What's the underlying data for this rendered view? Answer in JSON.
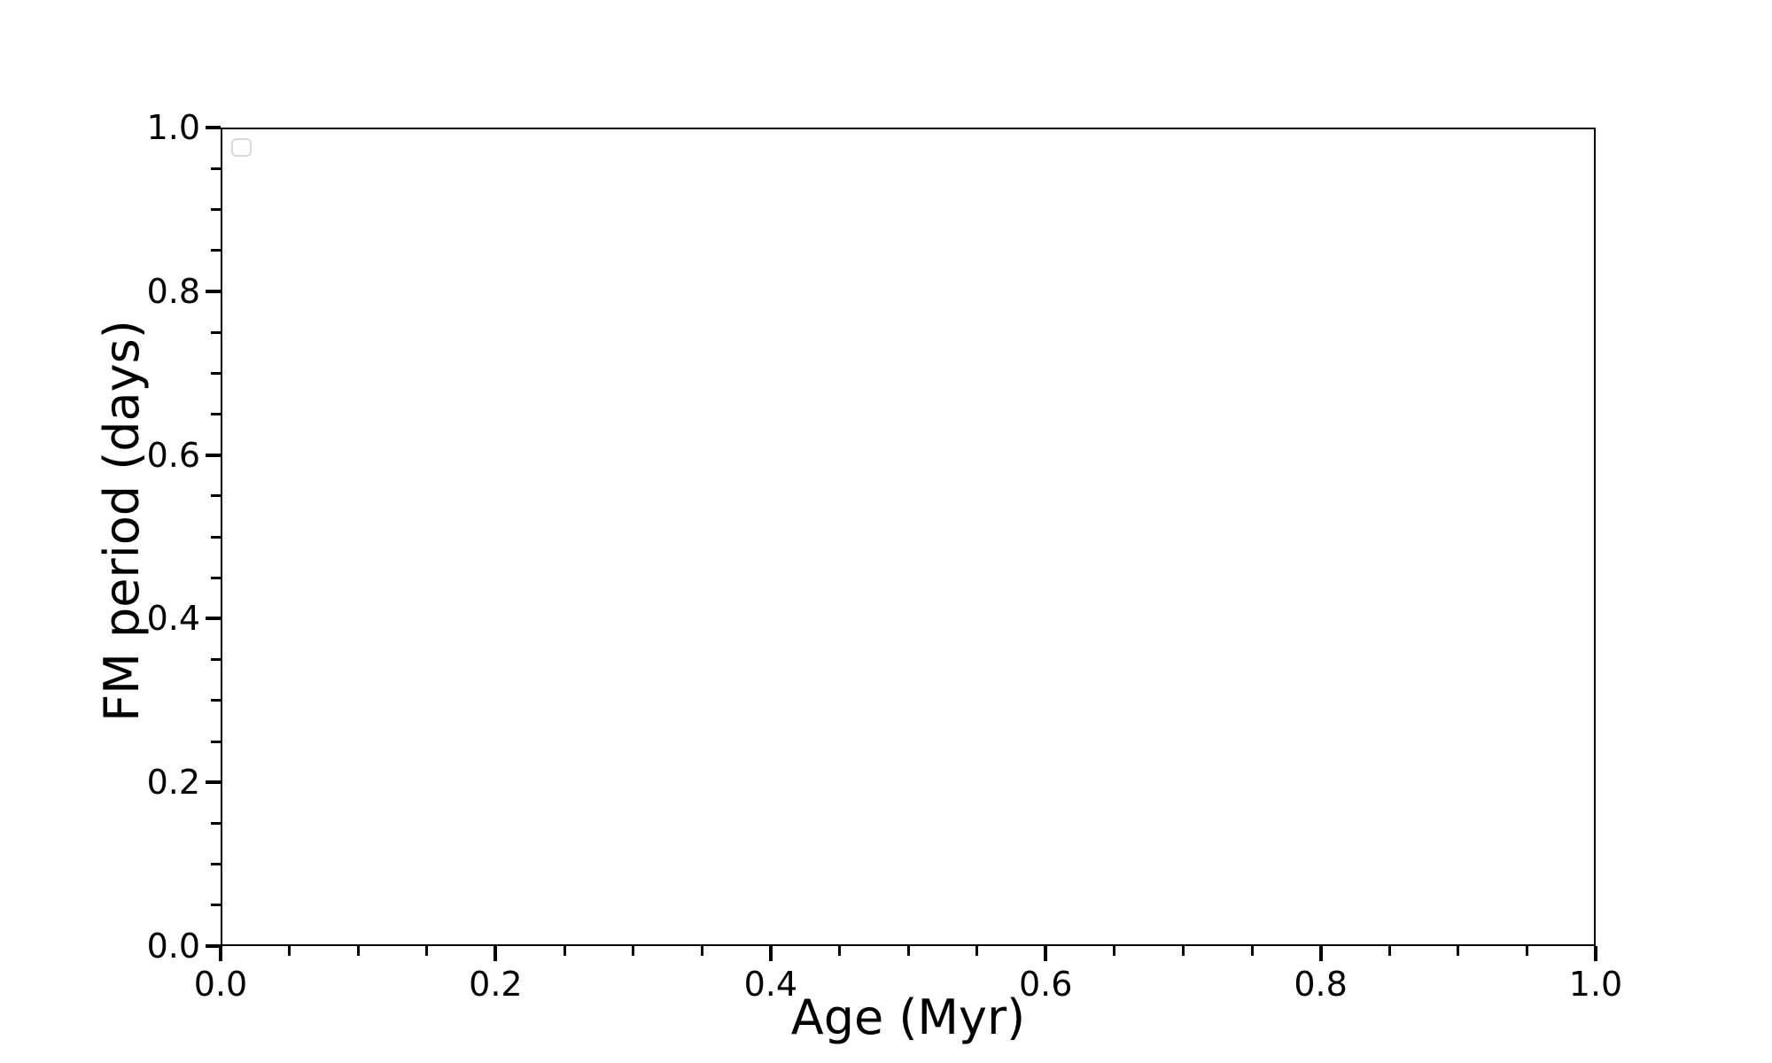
{
  "figure": {
    "background_color": "#ffffff",
    "axis_color": "#000000",
    "text_color": "#000000"
  },
  "chart_data": {
    "type": "scatter",
    "title": "",
    "xlabel": "Age (Myr)",
    "ylabel": "FM period (days)",
    "xlim": [
      0.0,
      1.0
    ],
    "ylim": [
      0.0,
      1.0
    ],
    "grid": false,
    "series": [],
    "x_major_ticks": [
      0.0,
      0.2,
      0.4,
      0.6,
      0.8,
      1.0
    ],
    "x_tick_labels": [
      "0.0",
      "0.2",
      "0.4",
      "0.6",
      "0.8",
      "1.0"
    ],
    "x_minor_ticks": [
      0.05,
      0.1,
      0.15,
      0.25,
      0.3,
      0.35,
      0.45,
      0.5,
      0.55,
      0.65,
      0.7,
      0.75,
      0.85,
      0.9,
      0.95
    ],
    "y_major_ticks": [
      0.0,
      0.2,
      0.4,
      0.6,
      0.8,
      1.0
    ],
    "y_tick_labels": [
      "0.0",
      "0.2",
      "0.4",
      "0.6",
      "0.8",
      "1.0"
    ],
    "y_minor_ticks": [
      0.05,
      0.1,
      0.15,
      0.25,
      0.3,
      0.35,
      0.45,
      0.5,
      0.55,
      0.65,
      0.7,
      0.75,
      0.85,
      0.9,
      0.95
    ],
    "legend": {
      "visible": true,
      "position": "upper-left",
      "entries": [],
      "edge_color": "#d9d9d9",
      "face_color": "#ffffff"
    }
  }
}
